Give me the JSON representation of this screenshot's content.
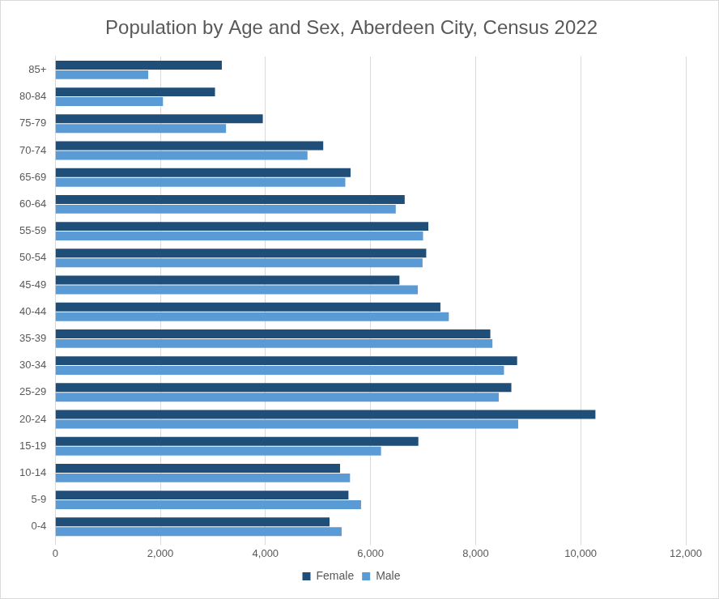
{
  "chart_data": {
    "type": "bar",
    "orientation": "horizontal",
    "title": "Population by Age and Sex, Aberdeen City, Census 2022",
    "categories": [
      "85+",
      "80-84",
      "75-79",
      "70-74",
      "65-69",
      "60-64",
      "55-59",
      "50-54",
      "45-49",
      "40-44",
      "35-39",
      "30-34",
      "25-29",
      "20-24",
      "15-19",
      "10-14",
      "5-9",
      "0-4"
    ],
    "series": [
      {
        "name": "Female",
        "color": "#1f4e79",
        "values": [
          3170,
          3040,
          3950,
          5100,
          5620,
          6650,
          7100,
          7060,
          6550,
          7330,
          8280,
          8790,
          8680,
          10280,
          6910,
          5420,
          5580,
          5220
        ]
      },
      {
        "name": "Male",
        "color": "#5b9bd5",
        "values": [
          1770,
          2050,
          3250,
          4800,
          5520,
          6480,
          7000,
          6990,
          6900,
          7490,
          8320,
          8540,
          8440,
          8810,
          6200,
          5610,
          5820,
          5450
        ]
      }
    ],
    "xlim": [
      0,
      12000
    ],
    "xticks": [
      0,
      {
        "value": 2000,
        "label": "2,000"
      },
      {
        "value": 4000,
        "label": "4,000"
      },
      {
        "value": 6000,
        "label": "6,000"
      },
      {
        "value": 8000,
        "label": "8,000"
      },
      {
        "value": 10000,
        "label": "10,000"
      },
      {
        "value": 12000,
        "label": "12,000"
      }
    ],
    "grid": true,
    "legend": "bottom"
  }
}
